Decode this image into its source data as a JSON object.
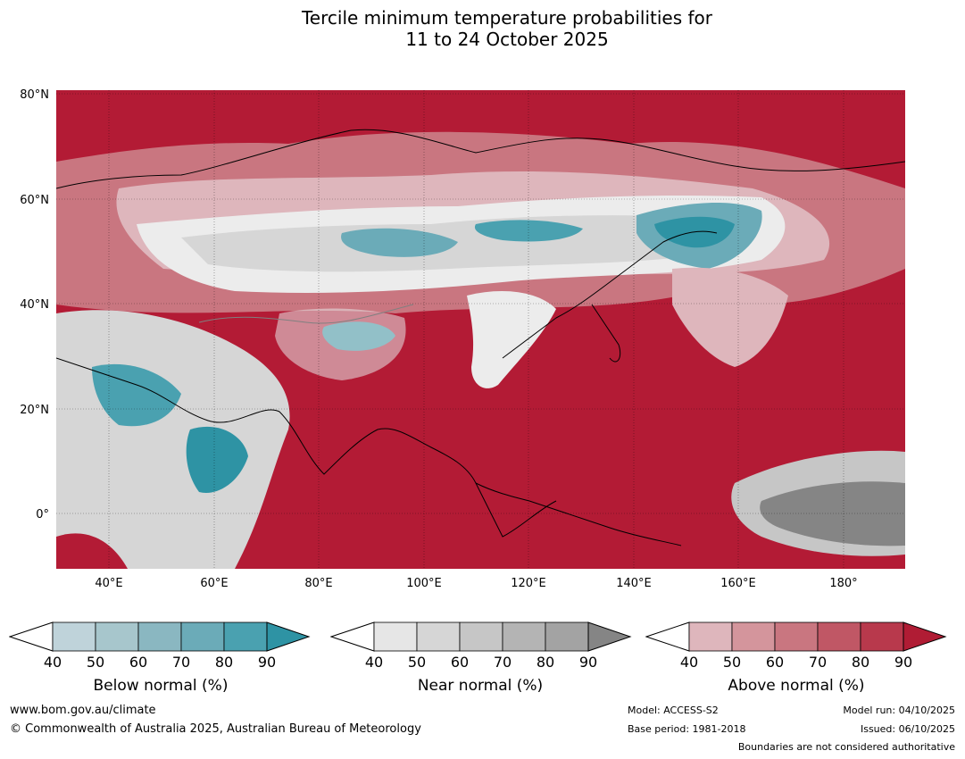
{
  "title": {
    "line1": "Tercile minimum temperature probabilities for",
    "line2": "11 to 24 October 2025"
  },
  "map": {
    "lat_labels": [
      "80°N",
      "60°N",
      "40°N",
      "20°N",
      "0°"
    ],
    "lon_labels": [
      "40°E",
      "60°E",
      "80°E",
      "100°E",
      "120°E",
      "140°E",
      "160°E",
      "180°"
    ],
    "colors": {
      "above_dominant": "#b31b35",
      "ocean_shade": "#b31b35",
      "near_dark": "#8a8a8a",
      "below_strong": "#3a9aa8",
      "coastline": "#000000",
      "boundary": "#808080"
    }
  },
  "legends": [
    {
      "title": "Below normal (%)",
      "ticks": [
        "40",
        "50",
        "60",
        "70",
        "80",
        "90"
      ],
      "colors": [
        "#ffffff",
        "#bfd3da",
        "#a7c6cc",
        "#8ab7c1",
        "#6babb8",
        "#4aa1b0",
        "#2e93a4"
      ]
    },
    {
      "title": "Near normal (%)",
      "ticks": [
        "40",
        "50",
        "60",
        "70",
        "80",
        "90"
      ],
      "colors": [
        "#ffffff",
        "#e6e6e6",
        "#d6d6d6",
        "#c6c6c6",
        "#b4b4b4",
        "#a3a3a3",
        "#858585"
      ]
    },
    {
      "title": "Above normal (%)",
      "ticks": [
        "40",
        "50",
        "60",
        "70",
        "80",
        "90"
      ],
      "colors": [
        "#ffffff",
        "#deb6bc",
        "#d4959c",
        "#c97680",
        "#c05765",
        "#b8394c",
        "#b01c34"
      ]
    }
  ],
  "footer": {
    "website": "www.bom.gov.au/climate",
    "copyright": "© Commonwealth of Australia 2025, Australian Bureau of Meteorology",
    "model": "Model: ACCESS-S2",
    "base_period": "Base period: 1981-2018",
    "model_run": "Model run: 04/10/2025",
    "issued": "Issued: 06/10/2025",
    "boundaries": "Boundaries are not considered authoritative"
  }
}
